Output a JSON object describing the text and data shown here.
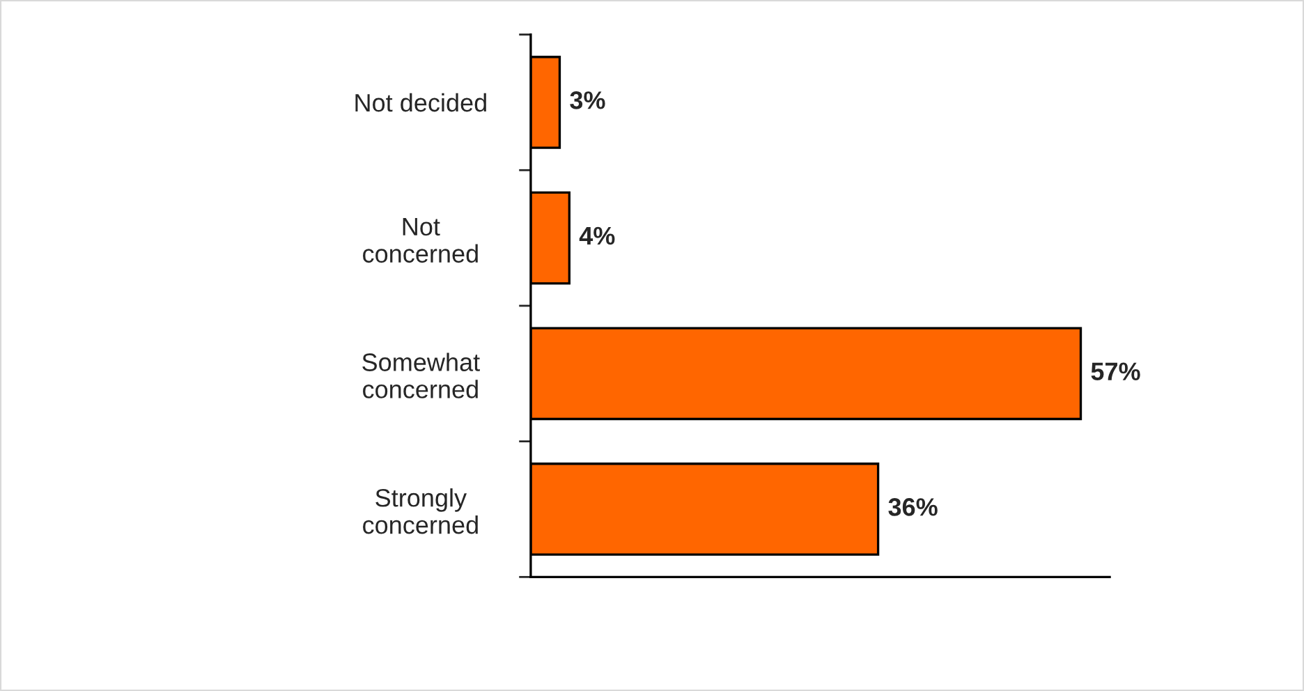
{
  "chart_data": {
    "type": "bar",
    "orientation": "horizontal",
    "categories": [
      "Not decided",
      "Not\nconcerned",
      "Somewhat\nconcerned",
      "Strongly\nconcerned"
    ],
    "values": [
      3,
      4,
      57,
      36
    ],
    "color": "#ff6600",
    "value_labels": [
      "3%",
      "4%",
      "57%",
      "36%"
    ],
    "xlim": [
      0,
      60
    ],
    "tick_labels": "y",
    "grid": false,
    "legend": false
  }
}
